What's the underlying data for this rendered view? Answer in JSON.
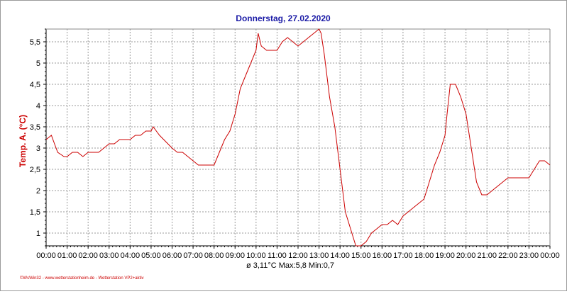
{
  "chart_data": {
    "type": "line",
    "title": "Donnerstag, 27.02.2020",
    "ylabel": "Temp. A. (°C)",
    "xlabel": "",
    "ylim": [
      0.7,
      5.8
    ],
    "yticks": [
      1,
      1.5,
      2,
      2.5,
      3,
      3.5,
      4,
      4.5,
      5,
      5.5
    ],
    "ytick_labels": [
      "1",
      "1,5",
      "2",
      "2,5",
      "3",
      "3,5",
      "4",
      "4,5",
      "5",
      "5,5"
    ],
    "xlim": [
      0,
      24
    ],
    "xtick_labels": [
      "00:00",
      "01:00",
      "02:00",
      "03:00",
      "04:00",
      "05:00",
      "06:00",
      "07:00",
      "08:00",
      "09:00",
      "10:00",
      "11:00",
      "12:00",
      "13:00",
      "14:00",
      "15:00",
      "16:00",
      "17:00",
      "18:00",
      "19:00",
      "20:00",
      "21:00",
      "22:00",
      "23:00",
      "00:00"
    ],
    "grid": true,
    "line_color": "#cc0000",
    "series": [
      {
        "name": "",
        "x": [
          0,
          0.25,
          0.4,
          0.55,
          0.7,
          0.85,
          1.0,
          1.25,
          1.5,
          1.75,
          2.0,
          2.25,
          2.5,
          2.75,
          3.0,
          3.25,
          3.5,
          3.75,
          4.0,
          4.25,
          4.5,
          4.75,
          5.0,
          5.1,
          5.25,
          5.4,
          5.6,
          5.8,
          6.0,
          6.25,
          6.5,
          6.75,
          7.0,
          7.25,
          7.5,
          7.75,
          8.0,
          8.25,
          8.5,
          8.75,
          9.0,
          9.25,
          9.5,
          9.75,
          10.0,
          10.1,
          10.25,
          10.5,
          10.75,
          11.0,
          11.25,
          11.5,
          11.75,
          12.0,
          12.25,
          12.5,
          12.75,
          13.0,
          13.1,
          13.25,
          13.5,
          13.75,
          14.0,
          14.25,
          14.5,
          14.75,
          15.0,
          15.25,
          15.5,
          15.75,
          16.0,
          16.25,
          16.5,
          16.75,
          17.0,
          17.25,
          17.5,
          17.75,
          18.0,
          18.25,
          18.5,
          18.75,
          19.0,
          19.1,
          19.25,
          19.5,
          19.75,
          20.0,
          20.25,
          20.5,
          20.75,
          21.0,
          21.25,
          21.5,
          21.75,
          22.0,
          22.5,
          23.0,
          23.25,
          23.5,
          23.75,
          24.0
        ],
        "y": [
          3.2,
          3.3,
          3.1,
          2.9,
          2.85,
          2.8,
          2.8,
          2.9,
          2.9,
          2.8,
          2.9,
          2.9,
          2.9,
          3.0,
          3.1,
          3.1,
          3.2,
          3.2,
          3.2,
          3.3,
          3.3,
          3.4,
          3.4,
          3.5,
          3.4,
          3.3,
          3.2,
          3.1,
          3.0,
          2.9,
          2.9,
          2.8,
          2.7,
          2.6,
          2.6,
          2.6,
          2.6,
          2.9,
          3.2,
          3.4,
          3.8,
          4.4,
          4.7,
          5.0,
          5.3,
          5.7,
          5.4,
          5.3,
          5.3,
          5.3,
          5.5,
          5.6,
          5.5,
          5.4,
          5.5,
          5.6,
          5.7,
          5.8,
          5.7,
          5.2,
          4.2,
          3.5,
          2.5,
          1.5,
          1.1,
          0.7,
          0.7,
          0.8,
          1.0,
          1.1,
          1.2,
          1.2,
          1.3,
          1.2,
          1.4,
          1.5,
          1.6,
          1.7,
          1.8,
          2.2,
          2.6,
          2.9,
          3.3,
          3.8,
          4.5,
          4.5,
          4.2,
          3.8,
          3.0,
          2.2,
          1.9,
          1.9,
          2.0,
          2.1,
          2.2,
          2.3,
          2.3,
          2.3,
          2.5,
          2.7,
          2.7,
          2.6
        ]
      }
    ],
    "footer_stats": "ø 3,11°C  Max:5,8  Min:0,7",
    "credit": "©WsWin32 - www.wetterstationheim.de - Wetterstation VP2+aktiv"
  }
}
